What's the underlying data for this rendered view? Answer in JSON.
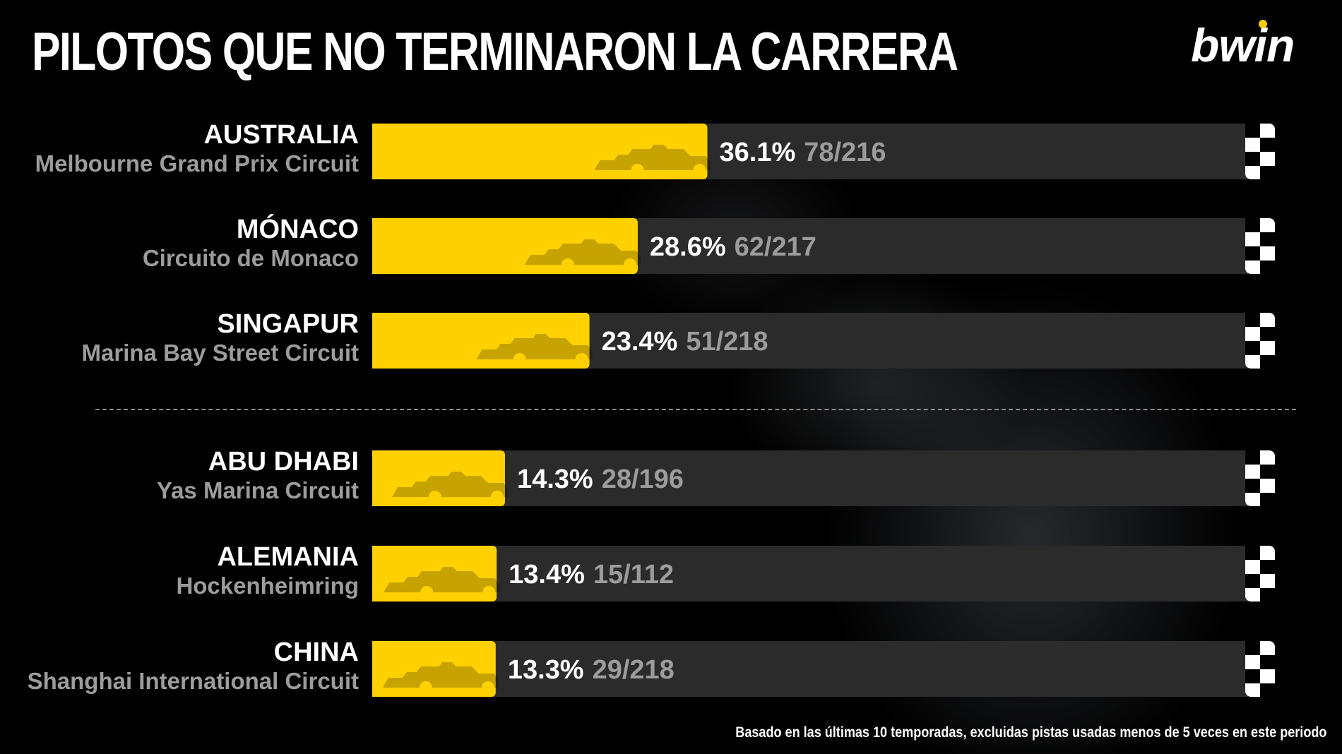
{
  "title": "PILOTOS QUE NO TERMINARON LA CARRERA",
  "logo": "bwin",
  "footnote": "Basado en las últimas 10 temporadas, excluidas pistas usadas menos de 5 veces en este periodo",
  "colors": {
    "bar": "#ffd100",
    "track": "#2b2b2b",
    "text": "#ffffff",
    "muted": "#9c9c9c"
  },
  "chart_data": {
    "type": "bar",
    "orientation": "horizontal",
    "xlim": [
      0,
      100
    ],
    "categories": [
      "AUSTRALIA",
      "MÓNACO",
      "SINGAPUR",
      "ABU DHABI",
      "ALEMANIA",
      "CHINA"
    ],
    "circuits": [
      "Melbourne Grand Prix Circuit",
      "Circuito de Monaco",
      "Marina Bay Street Circuit",
      "Yas Marina Circuit",
      "Hockenheimring",
      "Shanghai International Circuit"
    ],
    "values": [
      36.1,
      28.6,
      23.4,
      14.3,
      13.4,
      13.3
    ],
    "value_labels": [
      "36.1%",
      "28.6%",
      "23.4%",
      "14.3%",
      "13.4%",
      "13.3%"
    ],
    "counts": [
      "78/216",
      "62/217",
      "51/218",
      "28/196",
      "15/112",
      "29/218"
    ]
  }
}
